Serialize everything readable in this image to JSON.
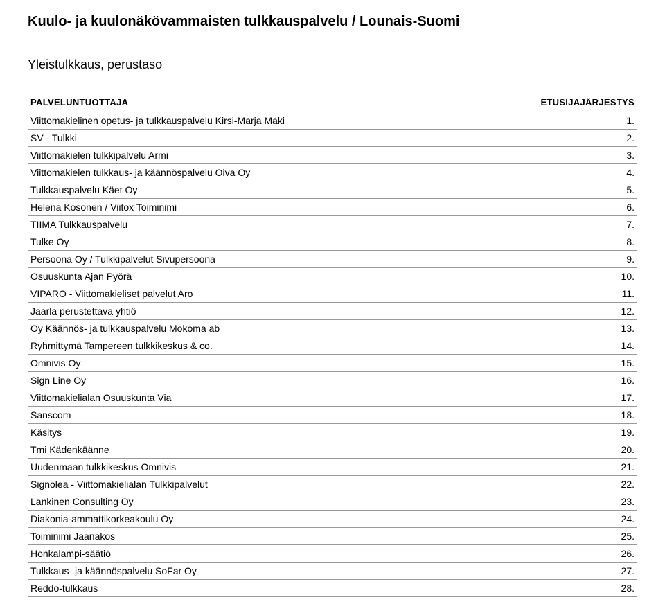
{
  "heading": {
    "title": "Kuulo- ja kuulonäkövammaisten tulkkauspalvelu / Lounais-Suomi",
    "subtitle": "Yleistulkkaus, perustaso"
  },
  "table": {
    "header_provider": "PALVELUNTUOTTAJA",
    "header_order": "ETUSIJAJÄRJESTYS",
    "rows": [
      {
        "name": "Viittomakielinen opetus- ja tulkkauspalvelu Kirsi-Marja Mäki",
        "order": "1."
      },
      {
        "name": "SV - Tulkki",
        "order": "2."
      },
      {
        "name": "Viittomakielen tulkkipalvelu Armi",
        "order": "3."
      },
      {
        "name": "Viittomakielen tulkkaus- ja käännöspalvelu Oiva Oy",
        "order": "4."
      },
      {
        "name": "Tulkkauspalvelu Käet Oy",
        "order": "5."
      },
      {
        "name": "Helena Kosonen / Viitox Toiminimi",
        "order": "6."
      },
      {
        "name": "TIIMA Tulkkauspalvelu",
        "order": "7."
      },
      {
        "name": "Tulke Oy",
        "order": "8."
      },
      {
        "name": "Persoona Oy / Tulkkipalvelut Sivupersoona",
        "order": "9."
      },
      {
        "name": "Osuuskunta Ajan Pyörä",
        "order": "10."
      },
      {
        "name": "VIPARO - Viittomakieliset palvelut Aro",
        "order": "11."
      },
      {
        "name": "Jaarla perustettava yhtiö",
        "order": "12."
      },
      {
        "name": "Oy Käännös- ja tulkkauspalvelu Mokoma ab",
        "order": "13."
      },
      {
        "name": "Ryhmittymä Tampereen tulkkikeskus & co.",
        "order": "14."
      },
      {
        "name": "Omnivis Oy",
        "order": "15."
      },
      {
        "name": "Sign Line Oy",
        "order": "16."
      },
      {
        "name": "Viittomakielialan Osuuskunta Via",
        "order": "17."
      },
      {
        "name": "Sanscom",
        "order": "18."
      },
      {
        "name": "Käsitys",
        "order": "19."
      },
      {
        "name": "Tmi Kädenkäänne",
        "order": "20."
      },
      {
        "name": "Uudenmaan tulkkikeskus Omnivis",
        "order": "21."
      },
      {
        "name": "Signolea - Viittomakielialan Tulkkipalvelut",
        "order": "22."
      },
      {
        "name": "Lankinen Consulting Oy",
        "order": "23."
      },
      {
        "name": "Diakonia-ammattikorkeakoulu Oy",
        "order": "24."
      },
      {
        "name": "Toiminimi Jaanakos",
        "order": "25."
      },
      {
        "name": "Honkalampi-säätiö",
        "order": "26."
      },
      {
        "name": "Tulkkaus- ja käännöspalvelu SoFar Oy",
        "order": "27."
      },
      {
        "name": "Reddo-tulkkaus",
        "order": "28."
      }
    ]
  }
}
